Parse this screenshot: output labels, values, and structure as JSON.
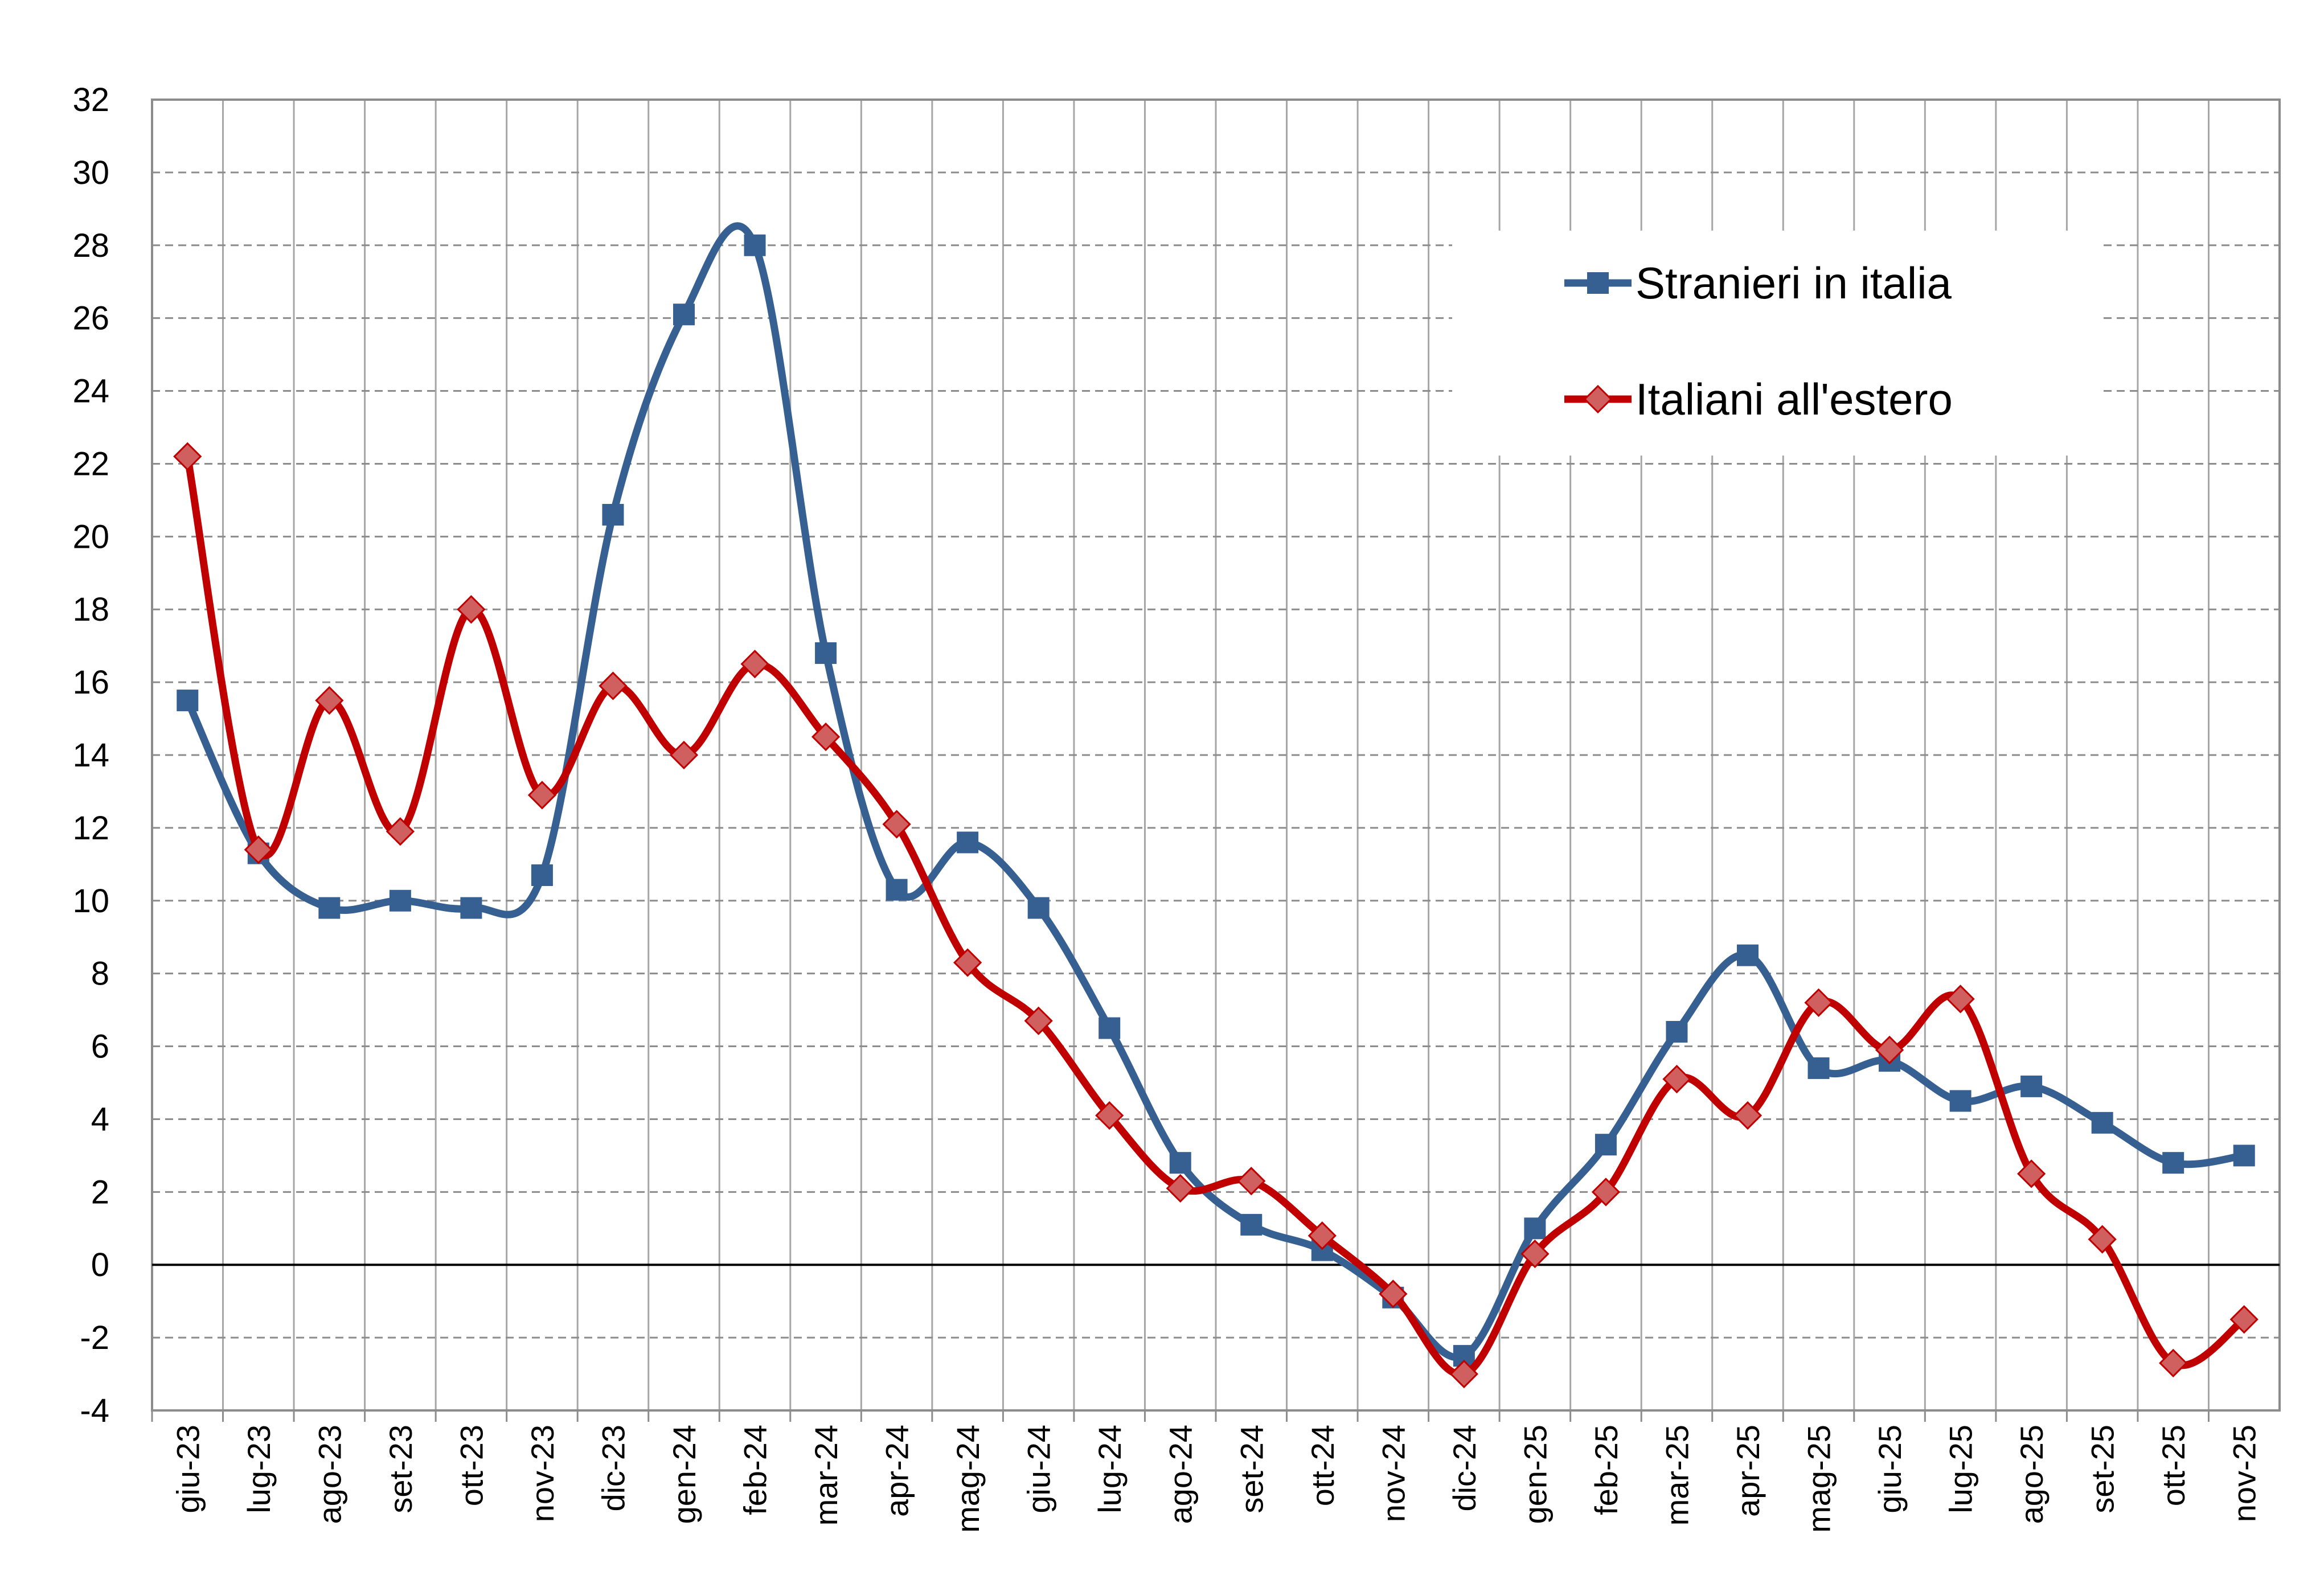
{
  "chart_data": {
    "type": "line",
    "title": "",
    "xlabel": "",
    "ylabel": "",
    "ylim": [
      -4,
      32
    ],
    "yticks": [
      -4,
      -2,
      0,
      2,
      4,
      6,
      8,
      10,
      12,
      14,
      16,
      18,
      20,
      22,
      24,
      26,
      28,
      30,
      32
    ],
    "grid": true,
    "legend_position": "top-right",
    "categories": [
      "giu-23",
      "lug-23",
      "ago-23",
      "set-23",
      "ott-23",
      "nov-23",
      "dic-23",
      "gen-24",
      "feb-24",
      "mar-24",
      "apr-24",
      "mag-24",
      "giu-24",
      "lug-24",
      "ago-24",
      "set-24",
      "ott-24",
      "nov-24",
      "dic-24",
      "gen-25",
      "feb-25",
      "mar-25",
      "apr-25",
      "mag-25",
      "giu-25",
      "lug-25",
      "ago-25",
      "set-25",
      "ott-25",
      "nov-25"
    ],
    "series": [
      {
        "name": "Stranieri in italia",
        "color": "#376092",
        "marker": "square",
        "values": [
          15.5,
          11.3,
          9.8,
          10.0,
          9.8,
          10.7,
          20.6,
          26.1,
          28.0,
          16.8,
          10.3,
          11.6,
          9.8,
          6.5,
          2.8,
          1.1,
          0.4,
          -0.9,
          -2.5,
          1.0,
          3.3,
          6.4,
          8.5,
          5.4,
          5.6,
          4.5,
          4.9,
          3.9,
          2.8,
          3.0
        ]
      },
      {
        "name": "Italiani all'estero",
        "color": "#C00000",
        "marker": "diamond",
        "marker_fill": "#D06060",
        "values": [
          22.2,
          11.4,
          15.5,
          11.9,
          18.0,
          12.9,
          15.9,
          14.0,
          16.5,
          14.5,
          12.1,
          8.3,
          6.7,
          4.1,
          2.1,
          2.3,
          0.8,
          -0.8,
          -3.0,
          0.3,
          2.0,
          5.1,
          4.1,
          7.2,
          5.9,
          7.3,
          2.5,
          0.7,
          -2.7,
          -1.5
        ]
      }
    ]
  }
}
